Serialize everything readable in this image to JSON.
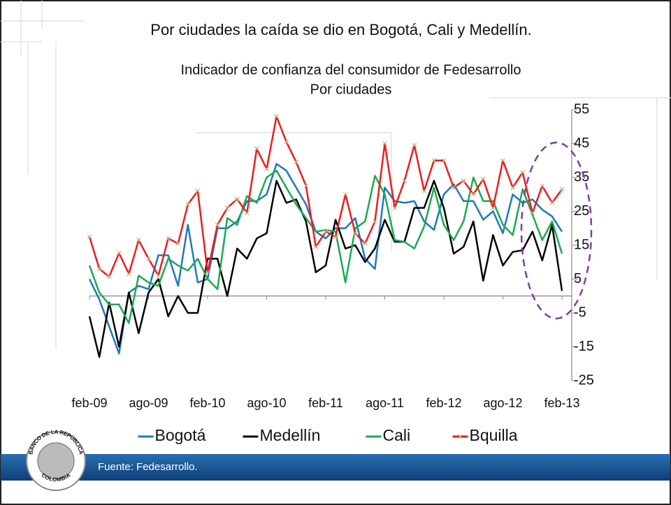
{
  "slide_title": "Por ciudades la caída se dio en Bogotá, Cali y Medellín.",
  "source": "Fuente: Fedesarrollo.",
  "logo_text": [
    "BANCO DE LA REPÚBLICA",
    "COLOMBIA"
  ],
  "chart_data": {
    "type": "line",
    "title": "Indicador de confianza del consumidor de Fedesarrollo",
    "subtitle": "Por ciudades",
    "categories": [
      "feb-09",
      null,
      null,
      null,
      null,
      null,
      "ago-09",
      null,
      null,
      null,
      null,
      null,
      "feb-10",
      null,
      null,
      null,
      null,
      null,
      "ago-10",
      null,
      null,
      null,
      null,
      null,
      "feb-11",
      null,
      null,
      null,
      null,
      null,
      "ago-11",
      null,
      null,
      null,
      null,
      null,
      "feb-12",
      null,
      null,
      null,
      null,
      null,
      "ago-12",
      null,
      null,
      null,
      null,
      null,
      "feb-13"
    ],
    "series": [
      {
        "name": "Bogotá",
        "color": "#1f78c1",
        "values": [
          5,
          -1,
          -9,
          -17,
          1,
          3,
          2,
          12,
          12,
          3,
          21,
          4,
          5,
          20,
          20,
          22,
          28,
          28,
          30,
          39,
          37,
          32,
          27,
          19,
          17,
          20,
          20,
          23,
          11,
          8,
          32,
          28,
          27.5,
          28,
          22,
          19.5,
          30,
          33,
          28,
          28,
          22.5,
          25,
          18.5,
          30,
          27.5,
          28.5,
          25.5,
          23.5,
          19
        ]
      },
      {
        "name": "Medellín",
        "color": "#000000",
        "values": [
          -6,
          -18,
          -2,
          -15,
          1,
          -11,
          1,
          5,
          -6,
          0,
          -5,
          -5,
          11,
          11,
          0,
          14,
          11,
          17,
          18.5,
          34,
          27.5,
          28.5,
          22,
          7,
          9,
          22.5,
          14,
          15,
          10,
          14,
          22.5,
          16,
          16,
          26,
          26,
          34,
          26,
          12.5,
          14.5,
          22,
          4.5,
          18,
          9,
          13,
          13.5,
          19,
          10.5,
          21,
          1.5
        ]
      },
      {
        "name": "Cali",
        "color": "#1aaa50",
        "values": [
          9,
          1,
          -2.5,
          -2.5,
          -8,
          6,
          4,
          3,
          11,
          9,
          7.5,
          11,
          5,
          2,
          23,
          21,
          29.5,
          27.5,
          35,
          37,
          32,
          27,
          23,
          19,
          19.5,
          19,
          4,
          20,
          22,
          35.5,
          30,
          16.5,
          16,
          14,
          20.5,
          32,
          21,
          16.5,
          22,
          35,
          28,
          28,
          21,
          18,
          31.5,
          24,
          16.5,
          22,
          12.5
        ]
      },
      {
        "name": "Bquilla",
        "color": "#ee1c1c",
        "marker": "x",
        "marker_color": "#c9b48a",
        "values": [
          17.5,
          8,
          5.7,
          12.7,
          6.5,
          16.5,
          11,
          6,
          17,
          15.5,
          27,
          31,
          7,
          21,
          26,
          28.6,
          24.5,
          43.5,
          37.5,
          53,
          45.5,
          39.5,
          32.5,
          14.5,
          19,
          17.5,
          30,
          18.5,
          15.5,
          22,
          45,
          26,
          34,
          44.5,
          31,
          40,
          40,
          32,
          34,
          30,
          34.5,
          26,
          40,
          32,
          36.5,
          24.5,
          32.5,
          27.5,
          31.5
        ]
      }
    ],
    "ylim": [
      -25,
      55
    ],
    "yticks": [
      -25,
      -15,
      -5,
      5,
      15,
      25,
      35,
      45,
      55
    ],
    "y_axis_side": "right",
    "legend": "bottom",
    "grid": false
  }
}
